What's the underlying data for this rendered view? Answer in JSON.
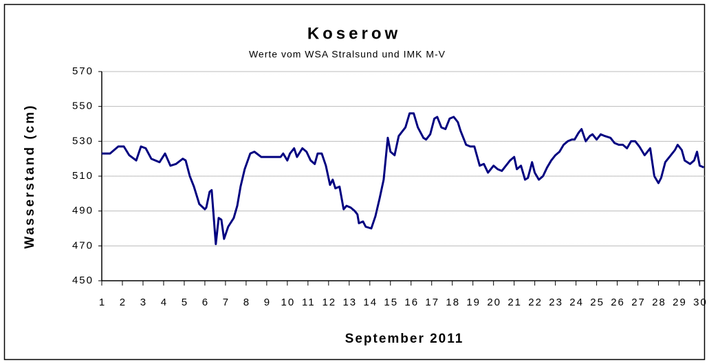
{
  "chart_data": {
    "type": "line",
    "title": "Koserow",
    "subtitle": "Werte vom WSA Stralsund und IMK M-V",
    "x_label": "September 2011",
    "y_label": "Wasserstand (cm)",
    "xlim": [
      1,
      30.25
    ],
    "xticks": [
      1,
      2,
      3,
      4,
      5,
      6,
      7,
      8,
      9,
      10,
      11,
      12,
      13,
      14,
      15,
      16,
      17,
      18,
      19,
      20,
      21,
      22,
      23,
      24,
      25,
      26,
      27,
      28,
      29,
      30
    ],
    "ylim": [
      450,
      570
    ],
    "yticks": [
      450,
      470,
      490,
      510,
      530,
      550,
      570
    ],
    "grid": true,
    "series": [
      {
        "color": "#000080",
        "x": [
          1.0,
          1.4,
          1.8,
          2.07,
          2.33,
          2.67,
          2.9,
          3.13,
          3.4,
          3.8,
          4.07,
          4.33,
          4.6,
          4.93,
          5.07,
          5.27,
          5.47,
          5.73,
          6.0,
          6.07,
          6.23,
          6.33,
          6.53,
          6.67,
          6.8,
          6.93,
          7.13,
          7.4,
          7.57,
          7.73,
          7.93,
          8.2,
          8.4,
          8.73,
          9.07,
          9.4,
          9.67,
          9.8,
          10.0,
          10.13,
          10.33,
          10.47,
          10.73,
          10.93,
          11.13,
          11.33,
          11.47,
          11.67,
          11.87,
          12.07,
          12.2,
          12.33,
          12.53,
          12.73,
          12.87,
          13.07,
          13.27,
          13.4,
          13.47,
          13.67,
          13.8,
          14.07,
          14.27,
          14.47,
          14.67,
          14.87,
          15.0,
          15.2,
          15.4,
          15.73,
          15.93,
          16.13,
          16.33,
          16.6,
          16.73,
          16.93,
          17.13,
          17.27,
          17.47,
          17.67,
          17.87,
          18.07,
          18.27,
          18.4,
          18.67,
          18.87,
          19.07,
          19.33,
          19.53,
          19.73,
          20.0,
          20.2,
          20.4,
          20.6,
          20.8,
          21.0,
          21.13,
          21.33,
          21.53,
          21.67,
          21.87,
          22.0,
          22.2,
          22.4,
          22.6,
          22.8,
          23.0,
          23.2,
          23.4,
          23.6,
          23.8,
          23.93,
          24.13,
          24.27,
          24.47,
          24.67,
          24.8,
          25.0,
          25.2,
          25.4,
          25.67,
          25.87,
          26.07,
          26.27,
          26.47,
          26.67,
          26.87,
          27.07,
          27.33,
          27.6,
          27.8,
          28.0,
          28.13,
          28.33,
          28.6,
          28.8,
          28.93,
          29.13,
          29.27,
          29.53,
          29.73,
          29.87,
          30.0,
          30.2
        ],
        "values": [
          523,
          523,
          527,
          527,
          522,
          519,
          527,
          526,
          520,
          518,
          523,
          516,
          517,
          520,
          519,
          510,
          504,
          494,
          491,
          492,
          501,
          502,
          471,
          486,
          485,
          474,
          481,
          486,
          493,
          504,
          514,
          523,
          524,
          521,
          521,
          521,
          521,
          523,
          519,
          523,
          526,
          521,
          526,
          524,
          519,
          517,
          523,
          523,
          516,
          505,
          508,
          503,
          504,
          491,
          493,
          492,
          490,
          488,
          483,
          484,
          481,
          480,
          487,
          497,
          508,
          532,
          524,
          522,
          533,
          538,
          546,
          546,
          538,
          532,
          531,
          534,
          543,
          544,
          538,
          537,
          543,
          544,
          541,
          536,
          528,
          527,
          527,
          516,
          517,
          512,
          516,
          514,
          513,
          516,
          519,
          521,
          514,
          516,
          508,
          509,
          518,
          512,
          508,
          510,
          515,
          519,
          522,
          524,
          528,
          530,
          531,
          531,
          535,
          537,
          530,
          533,
          534,
          531,
          534,
          533,
          532,
          529,
          528,
          528,
          526,
          530,
          530,
          527,
          522,
          526,
          510,
          506,
          509,
          518,
          522,
          525,
          528,
          525,
          519,
          517,
          519,
          524,
          516,
          515
        ]
      }
    ]
  }
}
